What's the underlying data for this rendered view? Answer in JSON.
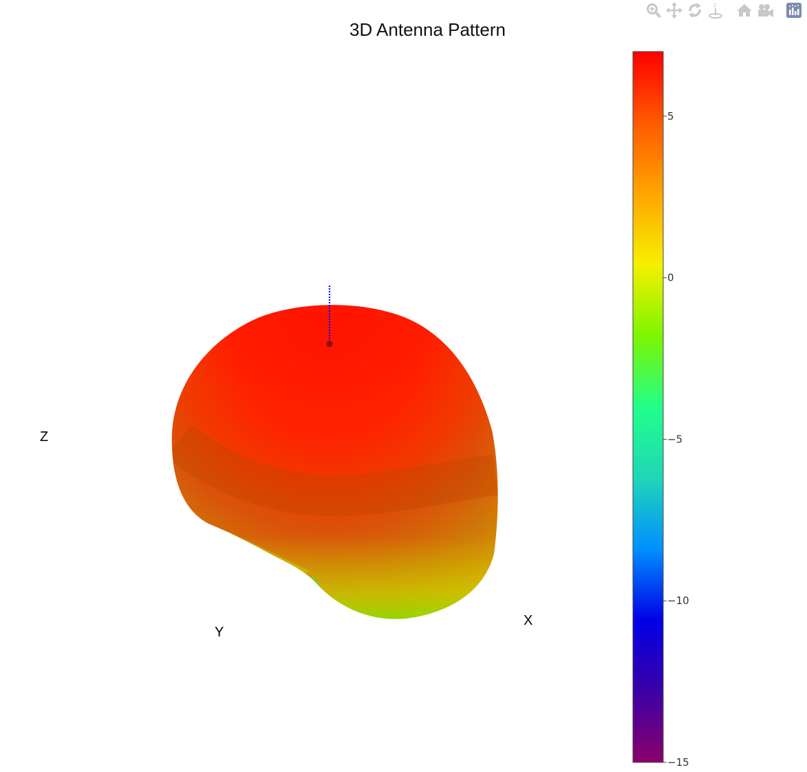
{
  "modebar": {
    "buttons": [
      {
        "name": "zoom-icon",
        "title": "Zoom"
      },
      {
        "name": "pan-icon",
        "title": "Pan"
      },
      {
        "name": "orbit-rotation-icon",
        "title": "Orbital rotation"
      },
      {
        "name": "turntable-rotation-icon",
        "title": "Turntable rotation"
      },
      {
        "name": "reset-camera-icon",
        "title": "Reset camera to default"
      },
      {
        "name": "camera-icon",
        "title": "Download plot as a png"
      },
      {
        "name": "plotly-logo-icon",
        "title": "Produced with Plotly"
      }
    ]
  },
  "chart_data": {
    "type": "surface",
    "title": "3D Antenna Pattern",
    "scene": {
      "xaxis_title": "X",
      "yaxis_title": "Y",
      "zaxis_title": "Z",
      "show_grid": false,
      "show_axes_lines": false
    },
    "colorscale": {
      "name": "rainbow",
      "colors": [
        "#8b006b",
        "#3b00a6",
        "#0000e6",
        "#0090ff",
        "#20d6b8",
        "#22ff8a",
        "#7cf500",
        "#f6f000",
        "#ffa500",
        "#ff5a00",
        "#ff0000"
      ]
    },
    "colorbar": {
      "range": [
        -15,
        7
      ],
      "tickvals": [
        5,
        0,
        -5,
        -10,
        -15
      ],
      "ticktext": [
        "5",
        "0",
        "−5",
        "−10",
        "−15"
      ]
    },
    "surface_value_range": [
      -3,
      6.5
    ],
    "feed_marker": {
      "color": "#0000ff",
      "style": "dotted"
    }
  }
}
